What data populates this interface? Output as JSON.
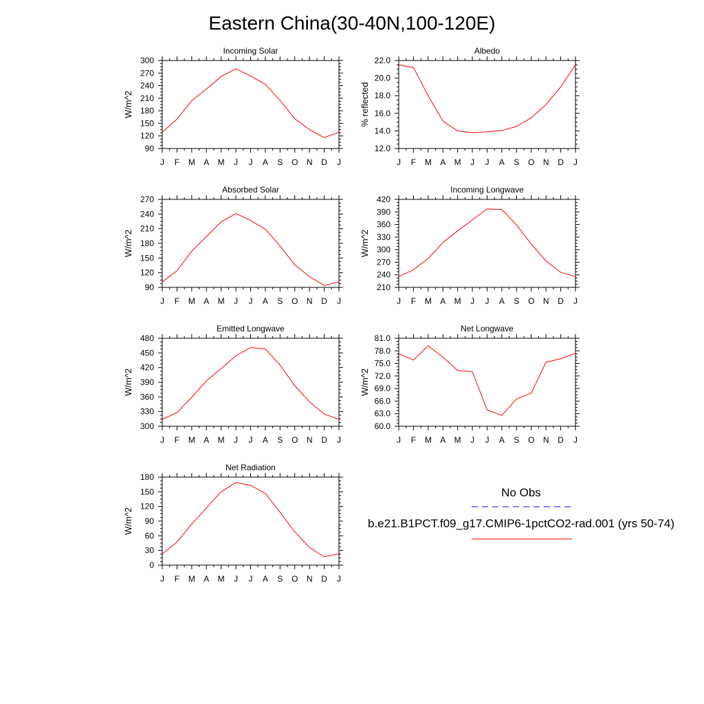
{
  "title": "Eastern China(30-40N,100-120E)",
  "legend": {
    "obs_label": "No Obs",
    "model_label": "b.e21.B1PCT.f09_g17.CMIP6-1pctCO2-rad.001 (yrs 50-74)",
    "obs_color": "#0000ff",
    "model_color": "#ff0000"
  },
  "chart_data": [
    {
      "type": "line",
      "title": "Incoming Solar",
      "ylabel": "W/m^2",
      "categories": [
        "J",
        "F",
        "M",
        "A",
        "M",
        "J",
        "J",
        "A",
        "S",
        "O",
        "N",
        "D",
        "J"
      ],
      "ylim": [
        90,
        300
      ],
      "yticks": [
        "90",
        "120",
        "150",
        "180",
        "210",
        "240",
        "270",
        "300"
      ],
      "series": [
        {
          "color": "#ff0000",
          "values": [
            129,
            160,
            204,
            232,
            262,
            280,
            263,
            243,
            205,
            161,
            135,
            116,
            129
          ]
        }
      ]
    },
    {
      "type": "line",
      "title": "Albedo",
      "ylabel": "% reflected",
      "categories": [
        "J",
        "F",
        "M",
        "A",
        "M",
        "J",
        "J",
        "A",
        "S",
        "O",
        "N",
        "D",
        "J"
      ],
      "ylim": [
        12,
        22
      ],
      "yticks": [
        "12.0",
        "14.0",
        "16.0",
        "18.0",
        "20.0",
        "22.0"
      ],
      "series": [
        {
          "color": "#ff0000",
          "values": [
            21.5,
            21.2,
            18.0,
            15.1,
            14.0,
            13.8,
            13.9,
            14.05,
            14.5,
            15.5,
            17.0,
            19.0,
            21.5
          ]
        }
      ]
    },
    {
      "type": "line",
      "title": "Absorbed Solar",
      "ylabel": "W/m^2",
      "categories": [
        "J",
        "F",
        "M",
        "A",
        "M",
        "J",
        "J",
        "A",
        "S",
        "O",
        "N",
        "D",
        "J"
      ],
      "ylim": [
        90,
        270
      ],
      "yticks": [
        "90",
        "120",
        "150",
        "180",
        "210",
        "240",
        "270"
      ],
      "series": [
        {
          "color": "#ff0000",
          "values": [
            101,
            124,
            164,
            194,
            224,
            241,
            227,
            209,
            175,
            136,
            112,
            94,
            101
          ]
        }
      ]
    },
    {
      "type": "line",
      "title": "Incoming Longwave",
      "ylabel": "W/m^2",
      "categories": [
        "J",
        "F",
        "M",
        "A",
        "M",
        "J",
        "J",
        "A",
        "S",
        "O",
        "N",
        "D",
        "J"
      ],
      "ylim": [
        210,
        420
      ],
      "yticks": [
        "210",
        "240",
        "270",
        "300",
        "330",
        "360",
        "390",
        "420"
      ],
      "series": [
        {
          "color": "#ff0000",
          "values": [
            236,
            252,
            279,
            317,
            345,
            371,
            397,
            396,
            359,
            313,
            273,
            246,
            236
          ]
        }
      ]
    },
    {
      "type": "line",
      "title": "Emitted Longwave",
      "ylabel": "W/m^2",
      "categories": [
        "J",
        "F",
        "M",
        "A",
        "M",
        "J",
        "J",
        "A",
        "S",
        "O",
        "N",
        "D",
        "J"
      ],
      "ylim": [
        300,
        480
      ],
      "yticks": [
        "300",
        "330",
        "360",
        "390",
        "420",
        "450",
        "480"
      ],
      "series": [
        {
          "color": "#ff0000",
          "values": [
            314,
            328,
            359,
            393,
            418,
            444,
            461,
            458,
            425,
            383,
            350,
            325,
            314
          ]
        }
      ]
    },
    {
      "type": "line",
      "title": "Net Longwave",
      "ylabel": "W/m^2",
      "categories": [
        "J",
        "F",
        "M",
        "A",
        "M",
        "J",
        "J",
        "A",
        "S",
        "O",
        "N",
        "D",
        "J"
      ],
      "ylim": [
        60,
        81
      ],
      "yticks": [
        "60.0",
        "63.0",
        "66.0",
        "69.0",
        "72.0",
        "75.0",
        "78.0",
        "81.0"
      ],
      "series": [
        {
          "color": "#ff0000",
          "values": [
            77.3,
            75.8,
            79.2,
            76.5,
            73.3,
            73.0,
            63.9,
            62.6,
            66.5,
            67.9,
            75.3,
            76.1,
            77.4
          ]
        }
      ]
    },
    {
      "type": "line",
      "title": "Net Radiation",
      "ylabel": "W/m^2",
      "categories": [
        "J",
        "F",
        "M",
        "A",
        "M",
        "J",
        "J",
        "A",
        "S",
        "O",
        "N",
        "D",
        "J"
      ],
      "ylim": [
        0,
        180
      ],
      "yticks": [
        "0",
        "30",
        "60",
        "90",
        "120",
        "150",
        "180"
      ],
      "series": [
        {
          "color": "#ff0000",
          "values": [
            23,
            47,
            84,
            117,
            150,
            169,
            163,
            147,
            108,
            68,
            36,
            17,
            23
          ]
        }
      ]
    }
  ]
}
